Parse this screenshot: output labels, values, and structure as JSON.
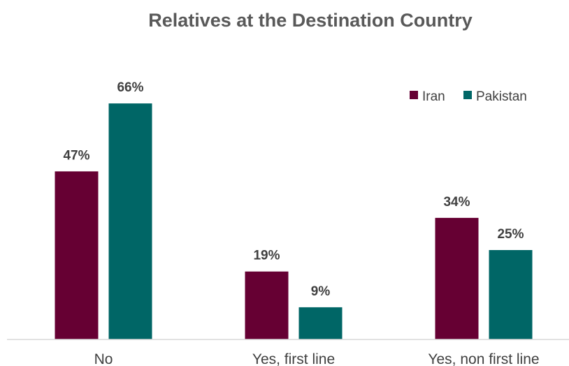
{
  "chart_data": {
    "type": "bar",
    "title": "Relatives at the Destination Country",
    "categories": [
      "No",
      "Yes, first line",
      "Yes, non first line"
    ],
    "series": [
      {
        "name": "Iran",
        "values": [
          47,
          19,
          34
        ],
        "labels": [
          "47%",
          "19%",
          "34%"
        ],
        "color": "#660033"
      },
      {
        "name": "Pakistan",
        "values": [
          66,
          9,
          25
        ],
        "labels": [
          "66%",
          "9%",
          "25%"
        ],
        "color": "#006666"
      }
    ],
    "unit": "%",
    "ylim": [
      0,
      75
    ],
    "legend": "top-right",
    "grid": false,
    "axis_color": "#d9d9d9"
  }
}
